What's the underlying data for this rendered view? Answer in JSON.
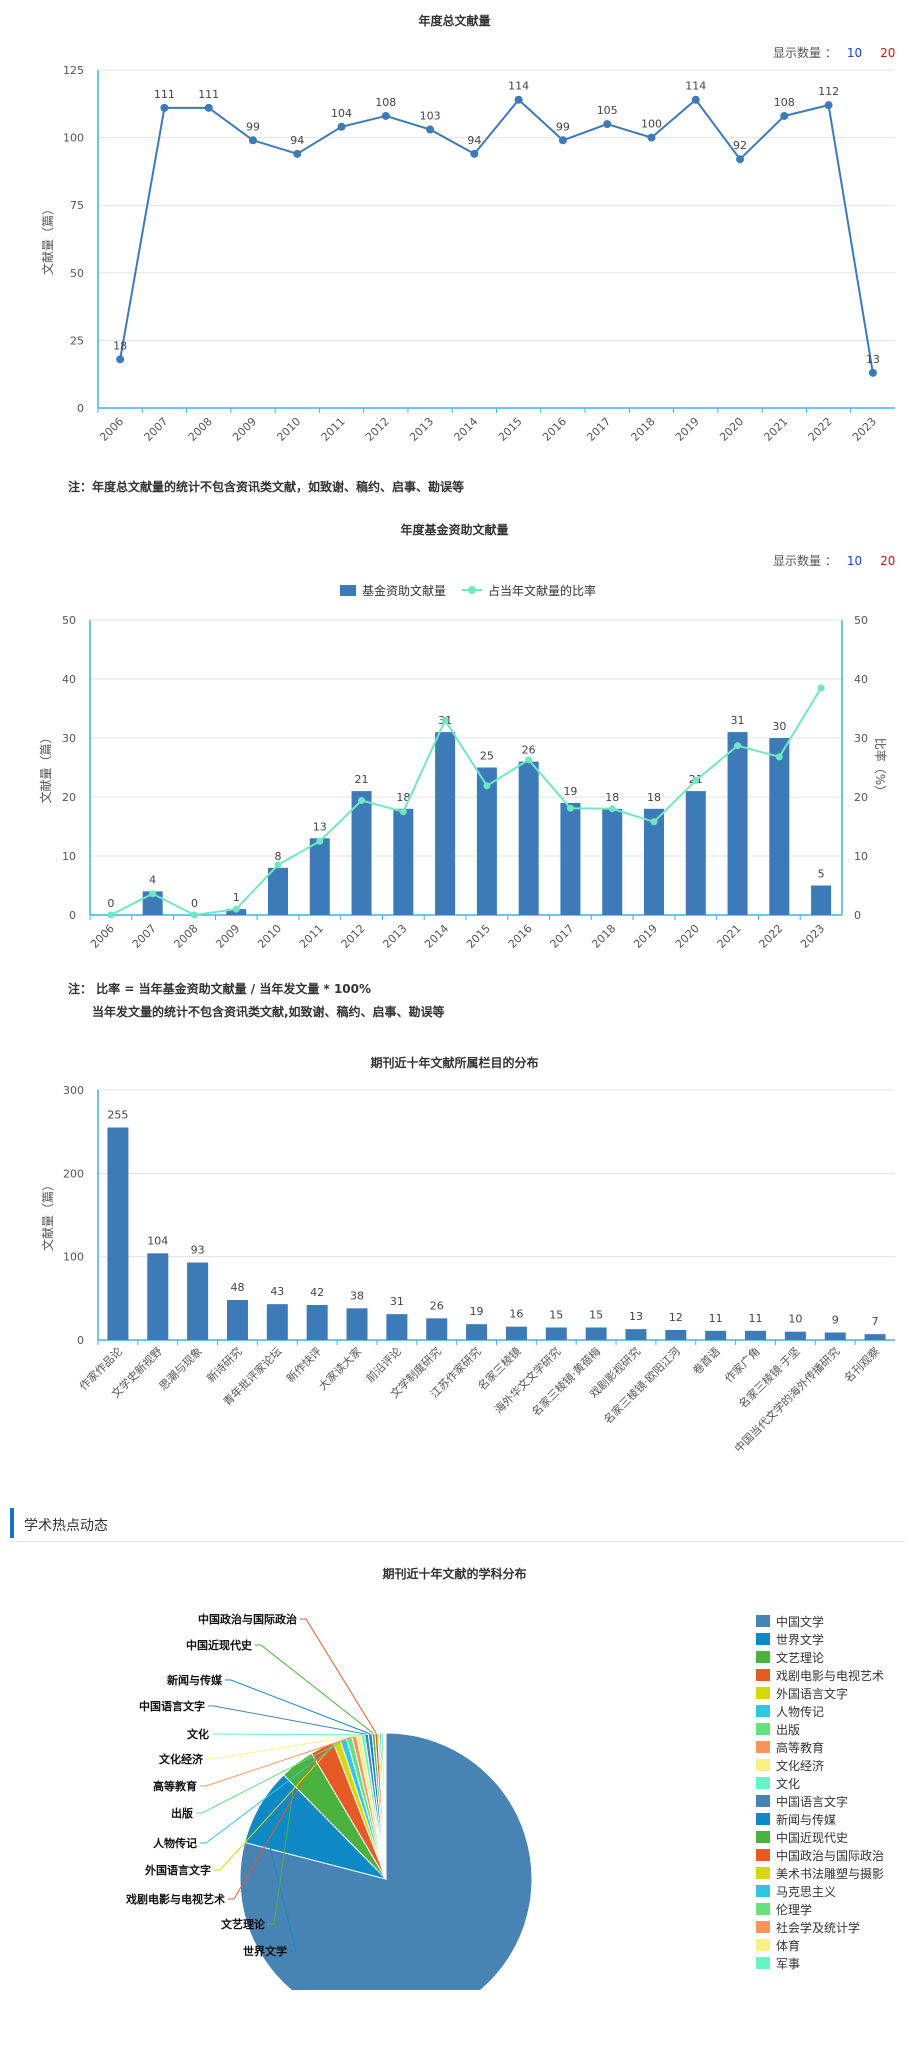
{
  "chart_data": [
    {
      "type": "line",
      "title": "年度总文献量",
      "ylabel": "文献量（篇）",
      "x": [
        "2006",
        "2007",
        "2008",
        "2009",
        "2010",
        "2011",
        "2012",
        "2013",
        "2014",
        "2015",
        "2016",
        "2017",
        "2018",
        "2019",
        "2020",
        "2021",
        "2022",
        "2023"
      ],
      "series": [
        {
          "values": [
            18,
            111,
            111,
            99,
            94,
            104,
            108,
            103,
            94,
            114,
            99,
            105,
            100,
            114,
            92,
            108,
            112,
            13
          ]
        }
      ],
      "ylim": [
        0,
        125
      ],
      "yticks": [
        0,
        25,
        50,
        75,
        100,
        125
      ],
      "color": "#3d7ab8"
    },
    {
      "type": "bar",
      "title": "年度基金资助文献量",
      "ylabel": "文献量（篇）",
      "y2label": "比率（%）",
      "legend_position": "top-center",
      "x": [
        "2006",
        "2007",
        "2008",
        "2009",
        "2010",
        "2011",
        "2012",
        "2013",
        "2014",
        "2015",
        "2016",
        "2017",
        "2018",
        "2019",
        "2020",
        "2021",
        "2022",
        "2023"
      ],
      "series": [
        {
          "name": "基金资助文献量",
          "type": "bar",
          "color": "#3d7ab8",
          "values": [
            0,
            4,
            0,
            1,
            8,
            13,
            21,
            18,
            31,
            25,
            26,
            19,
            18,
            18,
            21,
            31,
            30,
            5
          ]
        },
        {
          "name": "占当年文献量的比率",
          "type": "line",
          "axis": "right",
          "color": "#6fe8c0",
          "values": [
            0,
            3.6,
            0,
            1.0,
            8.5,
            12.5,
            19.4,
            17.5,
            33.0,
            21.9,
            26.3,
            18.1,
            18.0,
            15.8,
            22.8,
            28.7,
            26.8,
            38.5
          ]
        }
      ],
      "ylim": [
        0,
        50
      ],
      "y2lim": [
        0,
        50
      ],
      "yticks": [
        0,
        10,
        20,
        30,
        40,
        50
      ]
    },
    {
      "type": "bar",
      "title": "期刊近十年文献所属栏目的分布",
      "ylabel": "文献量（篇）",
      "categories": [
        "作家作品论",
        "文学史新视野",
        "思潮与现象",
        "新诗研究",
        "青年批评家论坛",
        "新作快评",
        "大家读大家",
        "前沿评论",
        "文学制度研究",
        "江苏作家研究",
        "名家三棱镜",
        "海外华文文学研究",
        "名家三棱镜·黄蓓梅",
        "戏剧影视研究",
        "名家三棱镜·欧阳江河",
        "卷首语",
        "作家广角",
        "名家三棱镜·于坚",
        "中国当代文学的海外传播研究",
        "名刊观察"
      ],
      "values": [
        255,
        104,
        93,
        48,
        43,
        42,
        38,
        31,
        26,
        19,
        16,
        15,
        15,
        13,
        12,
        11,
        11,
        10,
        9,
        7
      ],
      "ylim": [
        0,
        300
      ],
      "yticks": [
        0,
        100,
        200,
        300
      ],
      "color": "#3d7ab8"
    },
    {
      "type": "pie",
      "title": "期刊近十年文献的学科分布",
      "legend_position": "right",
      "slices": [
        {
          "label": "中国文学",
          "value": 780,
          "color": "#4783b5"
        },
        {
          "label": "世界文学",
          "value": 85,
          "color": "#0f89c6"
        },
        {
          "label": "文艺理论",
          "value": 38,
          "color": "#4cb23f"
        },
        {
          "label": "戏剧电影与电视艺术",
          "value": 26,
          "color": "#e55a25"
        },
        {
          "label": "外国语言文字",
          "value": 8,
          "color": "#d6d80a"
        },
        {
          "label": "人物传记",
          "value": 7,
          "color": "#33c5e4"
        },
        {
          "label": "出版",
          "value": 6,
          "color": "#66df7f"
        },
        {
          "label": "高等教育",
          "value": 5,
          "color": "#f9955c"
        },
        {
          "label": "文化经济",
          "value": 5,
          "color": "#f8ef85"
        },
        {
          "label": "文化",
          "value": 4,
          "color": "#66f3c6"
        },
        {
          "label": "中国语言文字",
          "value": 4,
          "color": "#4783b5"
        },
        {
          "label": "新闻与传媒",
          "value": 4,
          "color": "#0f89c6"
        },
        {
          "label": "中国近现代史",
          "value": 3,
          "color": "#4cb23f"
        },
        {
          "label": "中国政治与国际政治",
          "value": 3,
          "color": "#e55a25"
        },
        {
          "label": "美术书法雕塑与摄影",
          "value": 2,
          "color": "#d6d80a"
        },
        {
          "label": "马克思主义",
          "value": 2,
          "color": "#33c5e4"
        },
        {
          "label": "伦理学",
          "value": 2,
          "color": "#66df7f"
        },
        {
          "label": "社会学及统计学",
          "value": 1,
          "color": "#f9955c"
        },
        {
          "label": "体育",
          "value": 1,
          "color": "#f8ef85"
        },
        {
          "label": "军事",
          "value": 1,
          "color": "#66f3c6"
        }
      ]
    }
  ],
  "chart1": {
    "count_label": "显示数量 ：",
    "opt10": "10",
    "opt20": "20",
    "note": "注：年度总文献量的统计不包含资讯类文献，如致谢、稿约、启事、勘误等"
  },
  "chart2": {
    "count_label": "显示数量 ：",
    "opt10": "10",
    "opt20": "20",
    "note1": "注： 比率 = 当年基金资助文献量 / 当年发文量 * 100%",
    "note2": "当年发文量的统计不包含资讯类文献,如致谢、稿约、启事、勘误等"
  },
  "section": {
    "title": "学术热点动态"
  }
}
